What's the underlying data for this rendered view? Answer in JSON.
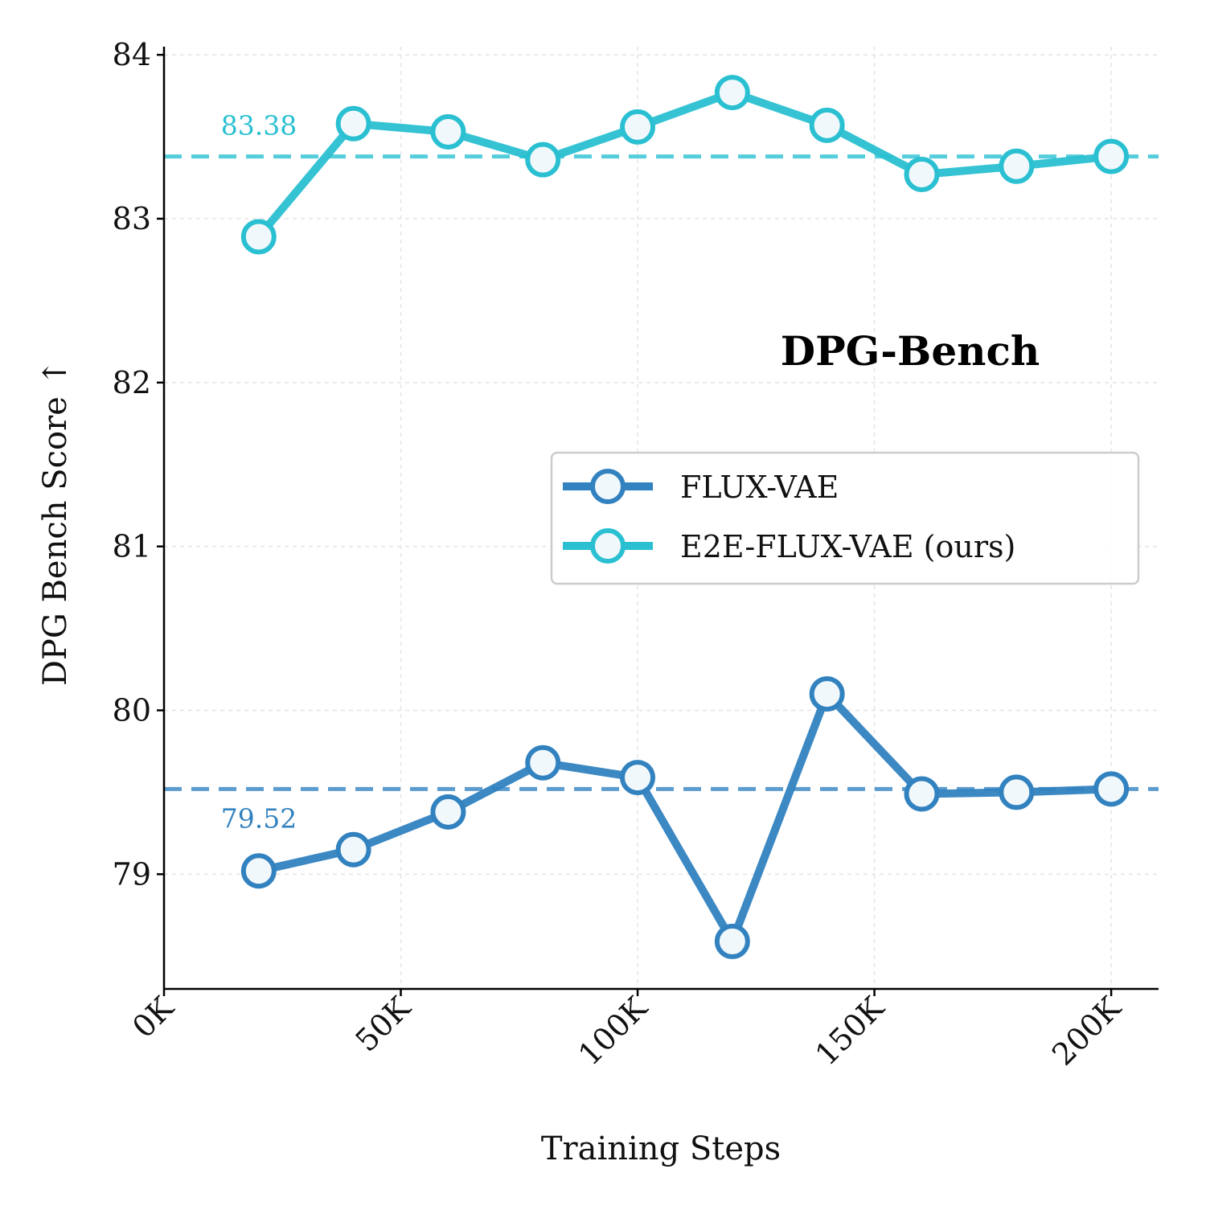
{
  "chart_data": {
    "type": "line",
    "title": "DPG-Bench",
    "xlabel": "Training Steps",
    "ylabel": "DPG Bench Score ↑",
    "xlim": [
      0,
      210000
    ],
    "ylim": [
      78.3,
      84.05
    ],
    "x_ticks": [
      0,
      50000,
      100000,
      150000,
      200000
    ],
    "x_tick_labels": [
      "0K",
      "50K",
      "100K",
      "150K",
      "200K"
    ],
    "y_ticks": [
      79,
      80,
      81,
      82,
      83,
      84
    ],
    "y_tick_labels": [
      "79",
      "80",
      "81",
      "82",
      "83",
      "84"
    ],
    "grid": true,
    "legend_position": "center-right",
    "x": [
      20000,
      40000,
      60000,
      80000,
      100000,
      120000,
      140000,
      160000,
      180000,
      200000
    ],
    "series": [
      {
        "name": "FLUX-VAE",
        "color": "#3282c0",
        "values": [
          79.02,
          79.15,
          79.38,
          79.68,
          79.59,
          78.59,
          80.1,
          79.49,
          79.5,
          79.52
        ]
      },
      {
        "name": "E2E-FLUX-VAE (ours)",
        "color": "#2ac0d2",
        "values": [
          82.89,
          83.58,
          83.53,
          83.36,
          83.56,
          83.77,
          83.57,
          83.27,
          83.32,
          83.38
        ]
      }
    ],
    "reference_lines": [
      {
        "value": 79.52,
        "label": "79.52",
        "color": "#3282c0"
      },
      {
        "value": 83.38,
        "label": "83.38",
        "color": "#2ac0d2"
      }
    ]
  }
}
